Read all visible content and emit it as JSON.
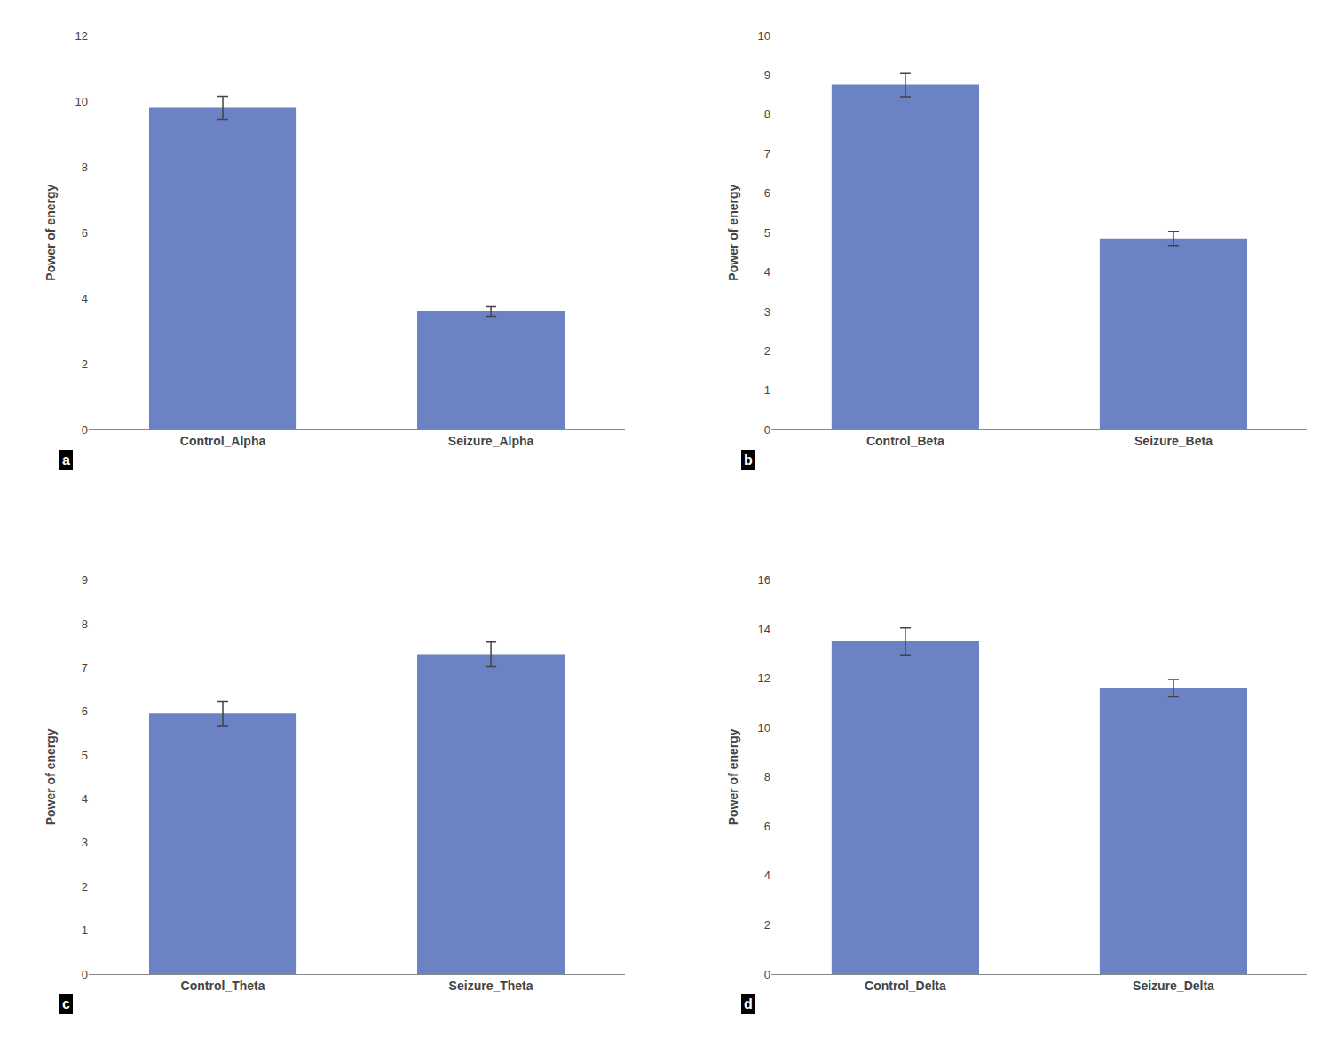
{
  "chart_data": [
    {
      "type": "bar",
      "categories": [
        "Control_Alpha",
        "Seizure_Alpha"
      ],
      "values": [
        9.8,
        3.6
      ],
      "errors": [
        0.35,
        0.15
      ],
      "ylim": [
        0,
        12
      ],
      "yticks": [
        0,
        2,
        4,
        6,
        8,
        10,
        12
      ],
      "ylabel": "Power of energy",
      "annotations": [
        "a"
      ],
      "color": "#6B82C4",
      "grid": false
    },
    {
      "type": "bar",
      "categories": [
        "Control_Beta",
        "Seizure_Beta"
      ],
      "values": [
        8.75,
        4.85
      ],
      "errors": [
        0.3,
        0.18
      ],
      "ylim": [
        0,
        10
      ],
      "yticks": [
        0,
        1,
        2,
        3,
        4,
        5,
        6,
        7,
        8,
        9,
        10
      ],
      "ylabel": "Power of energy",
      "annotations": [
        "b"
      ],
      "color": "#6B82C4",
      "grid": false
    },
    {
      "type": "bar",
      "categories": [
        "Control_Theta",
        "Seizure_Theta"
      ],
      "values": [
        5.95,
        7.3
      ],
      "errors": [
        0.28,
        0.28
      ],
      "ylim": [
        0,
        9
      ],
      "yticks": [
        0,
        1,
        2,
        3,
        4,
        5,
        6,
        7,
        8,
        9
      ],
      "ylabel": "Power of energy",
      "annotations": [
        "c"
      ],
      "color": "#6B82C4",
      "grid": false
    },
    {
      "type": "bar",
      "categories": [
        "Control_Delta",
        "Seizure_Delta"
      ],
      "values": [
        13.5,
        11.6
      ],
      "errors": [
        0.55,
        0.35
      ],
      "ylim": [
        0,
        16
      ],
      "yticks": [
        0,
        2,
        4,
        6,
        8,
        10,
        12,
        14,
        16
      ],
      "ylabel": "Power of energy",
      "annotations": [
        "d"
      ],
      "color": "#6B82C4",
      "grid": false
    }
  ]
}
